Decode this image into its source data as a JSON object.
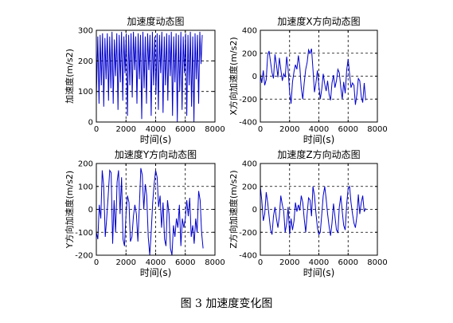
{
  "figure": {
    "caption": "图 3  加速度变化图"
  },
  "chart_data": [
    {
      "type": "line",
      "title": "加速度动态图",
      "xlabel": "时间(s)",
      "ylabel": "加速度(m/s2)",
      "xlim": [
        0,
        8000
      ],
      "ylim": [
        0,
        300
      ],
      "xticks": [
        0,
        2000,
        4000,
        6000,
        8000
      ],
      "yticks": [
        0,
        100,
        200,
        300
      ],
      "grid": true,
      "series": [
        {
          "color": "#0000cc",
          "x": [
            0,
            100,
            180,
            260,
            340,
            420,
            500,
            580,
            660,
            740,
            820,
            900,
            980,
            1060,
            1140,
            1220,
            1300,
            1380,
            1460,
            1540,
            1620,
            1700,
            1780,
            1860,
            1940,
            2020,
            2100,
            2180,
            2260,
            2340,
            2420,
            2500,
            2580,
            2660,
            2740,
            2820,
            2900,
            2980,
            3060,
            3140,
            3220,
            3300,
            3380,
            3460,
            3540,
            3620,
            3700,
            3780,
            3860,
            3940,
            4020,
            4100,
            4180,
            4260,
            4340,
            4420,
            4500,
            4580,
            4660,
            4740,
            4820,
            4900,
            4980,
            5060,
            5140,
            5220,
            5300,
            5380,
            5460,
            5540,
            5620,
            5700,
            5780,
            5860,
            5940,
            6020,
            6100,
            6180,
            6260,
            6340,
            6420,
            6500,
            6580,
            6660,
            6740,
            6820,
            6900,
            6980,
            7060,
            7140
          ],
          "y": [
            80,
            280,
            60,
            285,
            120,
            290,
            50,
            275,
            140,
            290,
            70,
            280,
            110,
            295,
            60,
            270,
            150,
            290,
            40,
            285,
            130,
            295,
            70,
            280,
            160,
            290,
            20,
            285,
            120,
            290,
            80,
            295,
            170,
            280,
            60,
            290,
            140,
            285,
            10,
            295,
            110,
            280,
            60,
            290,
            170,
            285,
            20,
            295,
            120,
            280,
            90,
            290,
            40,
            285,
            160,
            295,
            30,
            280,
            120,
            290,
            70,
            285,
            150,
            295,
            20,
            280,
            130,
            290,
            0,
            285,
            100,
            295,
            40,
            280,
            160,
            290,
            20,
            285,
            120,
            295,
            50,
            280,
            0,
            290,
            140,
            285,
            60,
            295,
            190,
            285
          ]
        }
      ]
    },
    {
      "type": "line",
      "title": "加速度X方向动态图",
      "xlabel": "时间(s)",
      "ylabel": "X方向加速度(m/s2)",
      "xlim": [
        0,
        8000
      ],
      "ylim": [
        -400,
        400
      ],
      "xticks": [
        0,
        2000,
        4000,
        6000,
        8000
      ],
      "yticks": [
        -400,
        -200,
        0,
        200,
        400
      ],
      "grid": true,
      "series": [
        {
          "color": "#0000cc",
          "x": [
            0,
            100,
            200,
            300,
            400,
            500,
            600,
            700,
            800,
            900,
            1000,
            1100,
            1200,
            1300,
            1400,
            1500,
            1600,
            1700,
            1800,
            1900,
            2000,
            2100,
            2200,
            2300,
            2400,
            2500,
            2600,
            2700,
            2800,
            2900,
            3000,
            3100,
            3200,
            3300,
            3400,
            3500,
            3600,
            3700,
            3800,
            3900,
            4000,
            4100,
            4200,
            4300,
            4400,
            4500,
            4600,
            4700,
            4800,
            4900,
            5000,
            5100,
            5200,
            5300,
            5400,
            5500,
            5600,
            5700,
            5800,
            5900,
            6000,
            6100,
            6200,
            6300,
            6400,
            6500,
            6600,
            6700,
            6800,
            6900,
            7000,
            7100,
            7200
          ],
          "y": [
            20,
            -60,
            50,
            -80,
            -30,
            180,
            220,
            120,
            30,
            -20,
            190,
            100,
            -10,
            160,
            60,
            -40,
            20,
            -10,
            170,
            60,
            -140,
            -240,
            -50,
            40,
            100,
            60,
            180,
            80,
            -100,
            -200,
            -60,
            60,
            120,
            230,
            200,
            240,
            60,
            -140,
            -60,
            50,
            -80,
            -200,
            -110,
            20,
            -70,
            -130,
            -40,
            -160,
            -210,
            -60,
            10,
            -100,
            -40,
            60,
            30,
            -100,
            -200,
            -50,
            -150,
            50,
            150,
            20,
            -100,
            -60,
            -80,
            -250,
            -160,
            -20,
            -40,
            -180,
            -230,
            -60,
            -210
          ]
        }
      ]
    },
    {
      "type": "line",
      "title": "加速度Y方向动态图",
      "xlabel": "时间(s)",
      "ylabel": "Y方向加速度(m/s2)",
      "xlim": [
        0,
        8000
      ],
      "ylim": [
        -200,
        200
      ],
      "xticks": [
        0,
        2000,
        4000,
        6000,
        8000
      ],
      "yticks": [
        -200,
        -100,
        0,
        100,
        200
      ],
      "grid": true,
      "series": [
        {
          "color": "#0000cc",
          "x": [
            0,
            100,
            200,
            300,
            400,
            500,
            600,
            700,
            800,
            900,
            1000,
            1100,
            1200,
            1300,
            1400,
            1500,
            1600,
            1700,
            1800,
            1900,
            2000,
            2100,
            2200,
            2300,
            2400,
            2500,
            2600,
            2700,
            2800,
            2900,
            3000,
            3100,
            3200,
            3300,
            3400,
            3500,
            3600,
            3700,
            3800,
            3900,
            4000,
            4100,
            4200,
            4300,
            4400,
            4500,
            4600,
            4700,
            4800,
            4900,
            5000,
            5100,
            5200,
            5300,
            5400,
            5500,
            5600,
            5700,
            5800,
            5900,
            6000,
            6100,
            6200,
            6300,
            6400,
            6500,
            6600,
            6700,
            6800,
            6900,
            7000,
            7100,
            7200
          ],
          "y": [
            -100,
            -130,
            20,
            -40,
            170,
            100,
            -120,
            -40,
            60,
            170,
            160,
            -150,
            40,
            -100,
            120,
            170,
            -20,
            140,
            -130,
            -160,
            -20,
            60,
            30,
            -140,
            -120,
            -30,
            20,
            -20,
            -140,
            10,
            180,
            150,
            0,
            110,
            60,
            -120,
            -200,
            -100,
            30,
            110,
            170,
            140,
            10,
            60,
            -80,
            30,
            -130,
            -160,
            40,
            -20,
            -170,
            -200,
            -70,
            -120,
            -40,
            -80,
            20,
            -160,
            -40,
            -80,
            -40,
            40,
            -30,
            50,
            -120,
            -70,
            -150,
            -40,
            -100,
            80,
            40,
            -100,
            -170
          ]
        }
      ]
    },
    {
      "type": "line",
      "title": "加速度Z方向动态图",
      "xlabel": "时间(s)",
      "ylabel": "Z方向加速度(m/s2)",
      "xlim": [
        0,
        8000
      ],
      "ylim": [
        -400,
        400
      ],
      "xticks": [
        0,
        2000,
        4000,
        6000,
        8000
      ],
      "yticks": [
        -400,
        -200,
        0,
        200,
        400
      ],
      "grid": true,
      "series": [
        {
          "color": "#0000cc",
          "x": [
            0,
            100,
            200,
            300,
            400,
            500,
            600,
            700,
            800,
            900,
            1000,
            1100,
            1200,
            1300,
            1400,
            1500,
            1600,
            1700,
            1800,
            1900,
            2000,
            2100,
            2200,
            2300,
            2400,
            2500,
            2600,
            2700,
            2800,
            2900,
            3000,
            3100,
            3200,
            3300,
            3400,
            3500,
            3600,
            3700,
            3800,
            3900,
            4000,
            4100,
            4200,
            4300,
            4400,
            4500,
            4600,
            4700,
            4800,
            4900,
            5000,
            5100,
            5200,
            5300,
            5400,
            5500,
            5600,
            5700,
            5800,
            5900,
            6000,
            6100,
            6200,
            6300,
            6400,
            6500,
            6600,
            6700,
            6800,
            6900,
            7000,
            7100,
            7200
          ],
          "y": [
            200,
            80,
            -100,
            -40,
            150,
            60,
            -60,
            -180,
            -220,
            -60,
            20,
            -80,
            -160,
            -60,
            120,
            40,
            -20,
            -200,
            -120,
            20,
            -220,
            -80,
            -180,
            -100,
            60,
            -20,
            40,
            -10,
            120,
            60,
            -80,
            -200,
            -40,
            100,
            80,
            -60,
            200,
            120,
            -30,
            -160,
            -220,
            -200,
            -40,
            120,
            200,
            90,
            -40,
            -150,
            -230,
            -120,
            50,
            -60,
            -180,
            -200,
            20,
            120,
            -20,
            -140,
            -180,
            40,
            180,
            200,
            60,
            -40,
            -120,
            -160,
            -60,
            130,
            -40,
            60,
            120,
            -20,
            10
          ]
        }
      ]
    }
  ]
}
